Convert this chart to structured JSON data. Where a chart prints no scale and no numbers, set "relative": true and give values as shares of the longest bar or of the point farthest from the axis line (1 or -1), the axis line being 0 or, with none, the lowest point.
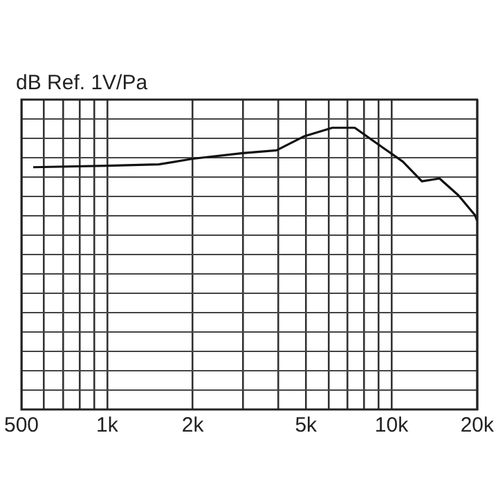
{
  "chart_data": {
    "type": "line",
    "ylabel": "dB Ref. 1V/Pa",
    "relative": true,
    "log": "x",
    "grid": true,
    "legend": false,
    "marker": "none",
    "line_style": "solid",
    "xlim": [
      500,
      20000
    ],
    "xticks": [
      {
        "value": 500,
        "label": "500"
      },
      {
        "value": 600,
        "label": null
      },
      {
        "value": 700,
        "label": null
      },
      {
        "value": 800,
        "label": null
      },
      {
        "value": 900,
        "label": null
      },
      {
        "value": 1000,
        "label": "1k"
      },
      {
        "value": 2000,
        "label": "2k"
      },
      {
        "value": 3000,
        "label": null
      },
      {
        "value": 4000,
        "label": null
      },
      {
        "value": 5000,
        "label": "5k"
      },
      {
        "value": 6000,
        "label": null
      },
      {
        "value": 7000,
        "label": null
      },
      {
        "value": 8000,
        "label": null
      },
      {
        "value": 9000,
        "label": null
      },
      {
        "value": 10000,
        "label": "10k"
      },
      {
        "value": 20000,
        "label": "20k"
      }
    ],
    "series": [
      {
        "color": "#111111",
        "x": [
          550,
          1000,
          1520,
          2000,
          3000,
          3940,
          4940,
          6190,
          7430,
          9310,
          10960,
          12790,
          14750,
          17200,
          19650,
          20000
        ],
        "values": [
          0.86,
          0.865,
          0.87,
          0.89,
          0.91,
          0.92,
          0.97,
          1,
          1,
          0.93,
          0.88,
          0.81,
          0.82,
          0.76,
          0.69,
          0.67
        ]
      }
    ]
  }
}
